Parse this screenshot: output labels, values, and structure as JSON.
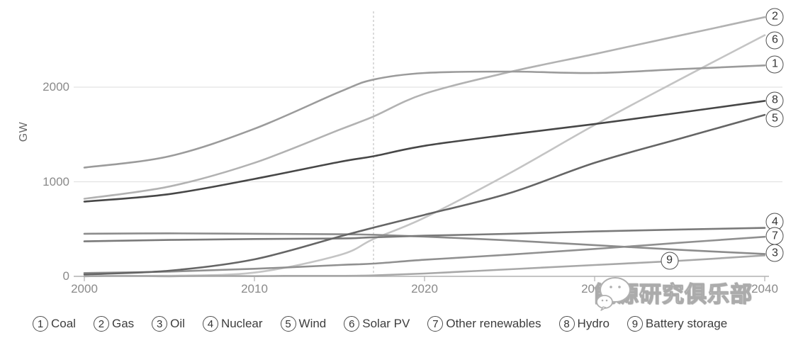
{
  "chart_data": {
    "type": "line",
    "title": "",
    "unit": "GW",
    "ylabel": "GW",
    "xlabel": "",
    "x": [
      2000,
      2005,
      2010,
      2015,
      2017,
      2020,
      2025,
      2030,
      2035,
      2040
    ],
    "x_ticks": [
      "2000",
      "2010",
      "2020",
      "2030",
      "2040"
    ],
    "y_ticks": [
      "0",
      "1000",
      "2000"
    ],
    "xlim": [
      2000,
      2040
    ],
    "ylim": [
      0,
      2800
    ],
    "grid": "horizontal",
    "historical_boundary_year": 2017,
    "series": [
      {
        "id": "1",
        "name": "Coal",
        "color": "#9b9b9b",
        "values": [
          1150,
          1270,
          1560,
          1950,
          2080,
          2150,
          2165,
          2150,
          2190,
          2230
        ],
        "label_pos": {
          "year": 2040.6,
          "gw": 2240
        }
      },
      {
        "id": "2",
        "name": "Gas",
        "color": "#b2b2b2",
        "values": [
          820,
          950,
          1200,
          1550,
          1690,
          1930,
          2160,
          2350,
          2545,
          2740
        ],
        "label_pos": {
          "year": 2040.6,
          "gw": 2745
        }
      },
      {
        "id": "3",
        "name": "Oil",
        "color": "#8c8c8c",
        "values": [
          450,
          455,
          450,
          445,
          440,
          420,
          380,
          330,
          280,
          237
        ],
        "label_pos": {
          "year": 2040.6,
          "gw": 245
        }
      },
      {
        "id": "4",
        "name": "Nuclear",
        "color": "#7a7a7a",
        "values": [
          370,
          385,
          395,
          400,
          413,
          430,
          450,
          475,
          495,
          512
        ],
        "label_pos": {
          "year": 2040.6,
          "gw": 575
        }
      },
      {
        "id": "5",
        "name": "Wind",
        "color": "#656565",
        "values": [
          20,
          60,
          180,
          420,
          515,
          650,
          880,
          1200,
          1455,
          1707
        ],
        "label_pos": {
          "year": 2040.6,
          "gw": 1670
        }
      },
      {
        "id": "6",
        "name": "Solar PV",
        "color": "#c4c4c4",
        "values": [
          2,
          6,
          40,
          225,
          395,
          620,
          1090,
          1600,
          2080,
          2550
        ],
        "label_pos": {
          "year": 2040.6,
          "gw": 2495
        }
      },
      {
        "id": "7",
        "name": "Other renewables",
        "color": "#909090",
        "values": [
          35,
          50,
          80,
          120,
          135,
          175,
          230,
          290,
          355,
          418
        ],
        "label_pos": {
          "year": 2040.6,
          "gw": 425
        }
      },
      {
        "id": "8",
        "name": "Hydro",
        "color": "#474747",
        "values": [
          790,
          870,
          1030,
          1210,
          1270,
          1380,
          1500,
          1610,
          1730,
          1855
        ],
        "label_pos": {
          "year": 2040.6,
          "gw": 1860
        }
      },
      {
        "id": "9",
        "name": "Battery storage",
        "color": "#a8a8a8",
        "values": [
          0,
          0,
          2,
          5,
          10,
          30,
          75,
          120,
          165,
          222
        ],
        "label_pos": {
          "year": 2034.4,
          "gw": 165
        }
      }
    ],
    "legend_position": "bottom"
  },
  "legend": [
    {
      "num": "1",
      "label": "Coal"
    },
    {
      "num": "2",
      "label": "Gas"
    },
    {
      "num": "3",
      "label": "Oil"
    },
    {
      "num": "4",
      "label": "Nuclear"
    },
    {
      "num": "5",
      "label": "Wind"
    },
    {
      "num": "6",
      "label": "Solar PV"
    },
    {
      "num": "7",
      "label": "Other renewables"
    },
    {
      "num": "8",
      "label": "Hydro"
    },
    {
      "num": "9",
      "label": "Battery storage"
    }
  ],
  "watermark": {
    "text": "能源研究俱乐部",
    "logo": "wechat-logo"
  }
}
